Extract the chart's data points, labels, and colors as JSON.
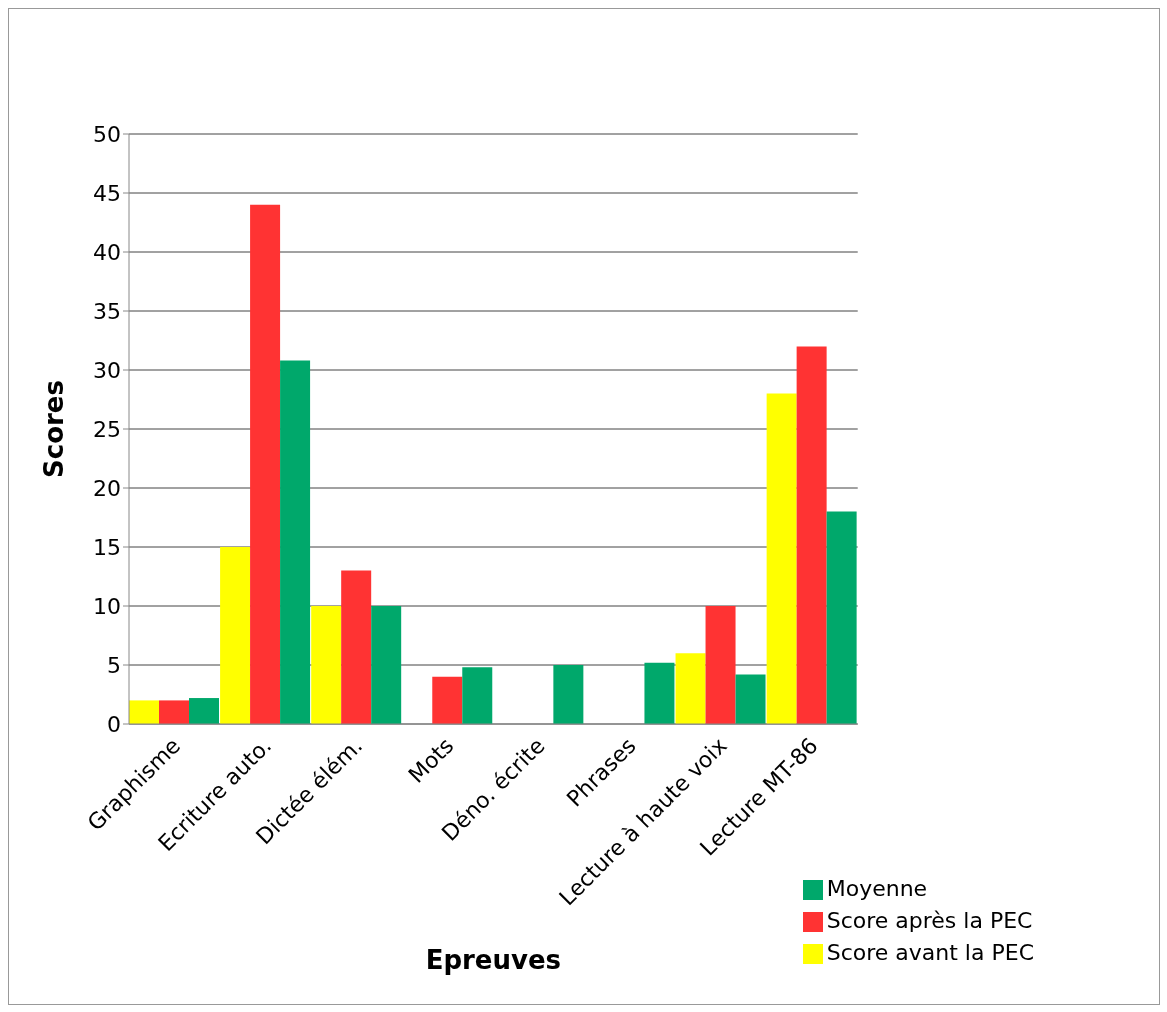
{
  "chart_data": {
    "type": "bar",
    "xlabel": "Epreuves",
    "ylabel": "Scores",
    "categories": [
      "Graphisme",
      "Ecriture auto.",
      "Dictée élém.",
      "Mots",
      "Déno. écrite",
      "Phrases",
      "Lecture à haute voix",
      "Lecture MT-86"
    ],
    "series": [
      {
        "name": "Score avant la PEC",
        "color": "#ffff00",
        "values": [
          2,
          15,
          10,
          0,
          0,
          0,
          6,
          28
        ]
      },
      {
        "name": "Score après la PEC",
        "color": "#ff3333",
        "values": [
          2,
          44,
          13,
          4,
          0,
          0,
          10,
          32
        ]
      },
      {
        "name": "Moyenne",
        "color": "#00a86b",
        "values": [
          2.2,
          30.8,
          10,
          4.8,
          5,
          5.2,
          4.2,
          18
        ]
      }
    ],
    "ylim": [
      0,
      50
    ],
    "yticks": [
      0,
      5,
      10,
      15,
      20,
      25,
      30,
      35,
      40,
      45,
      50
    ],
    "grid": "y",
    "legend": "bottom right"
  }
}
